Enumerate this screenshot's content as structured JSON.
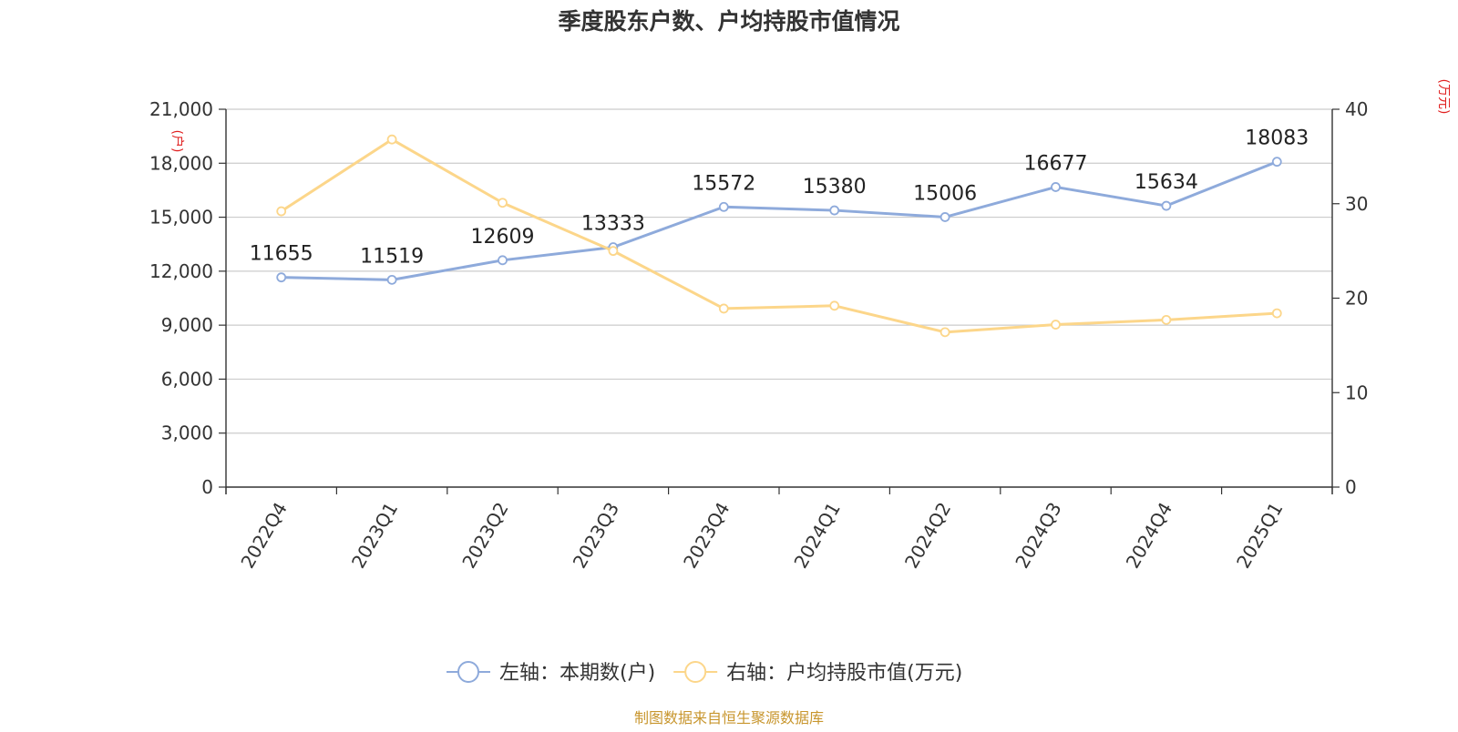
{
  "chart_data": {
    "type": "line",
    "title": "季度股东户数、户均持股市值情况",
    "categories": [
      "2022Q4",
      "2023Q1",
      "2023Q2",
      "2023Q3",
      "2023Q4",
      "2024Q1",
      "2024Q2",
      "2024Q3",
      "2024Q4",
      "2025Q1"
    ],
    "series": [
      {
        "name": "左轴：本期数(户)",
        "axis": "left",
        "color": "#8eaadb",
        "values": [
          11655,
          11519,
          12609,
          13333,
          15572,
          15380,
          15006,
          16677,
          15634,
          18083
        ],
        "data_labels": [
          "11655",
          "11519",
          "12609",
          "13333",
          "15572",
          "15380",
          "15006",
          "16677",
          "15634",
          "18083"
        ]
      },
      {
        "name": "右轴：户均持股市值(万元)",
        "axis": "right",
        "color": "#fcd68a",
        "values": [
          29.2,
          36.8,
          30.1,
          25.0,
          18.9,
          19.2,
          16.4,
          17.2,
          17.7,
          18.4
        ]
      }
    ],
    "y_left": {
      "unit_label": "(户)",
      "ylim": [
        0,
        21000
      ],
      "ticks": [
        0,
        3000,
        6000,
        9000,
        12000,
        15000,
        18000,
        21000
      ],
      "tick_labels": [
        "0",
        "3,000",
        "6,000",
        "9,000",
        "12,000",
        "15,000",
        "18,000",
        "21,000"
      ]
    },
    "y_right": {
      "unit_label": "(万元)",
      "ylim": [
        0,
        40
      ],
      "ticks": [
        0,
        10,
        20,
        30,
        40
      ],
      "tick_labels": [
        "0",
        "10",
        "20",
        "30",
        "40"
      ]
    },
    "grid": true,
    "legend_position": "bottom",
    "unit_label_color": "#e02020",
    "source": "制图数据来自恒生聚源数据库",
    "source_color": "#c8962e"
  }
}
